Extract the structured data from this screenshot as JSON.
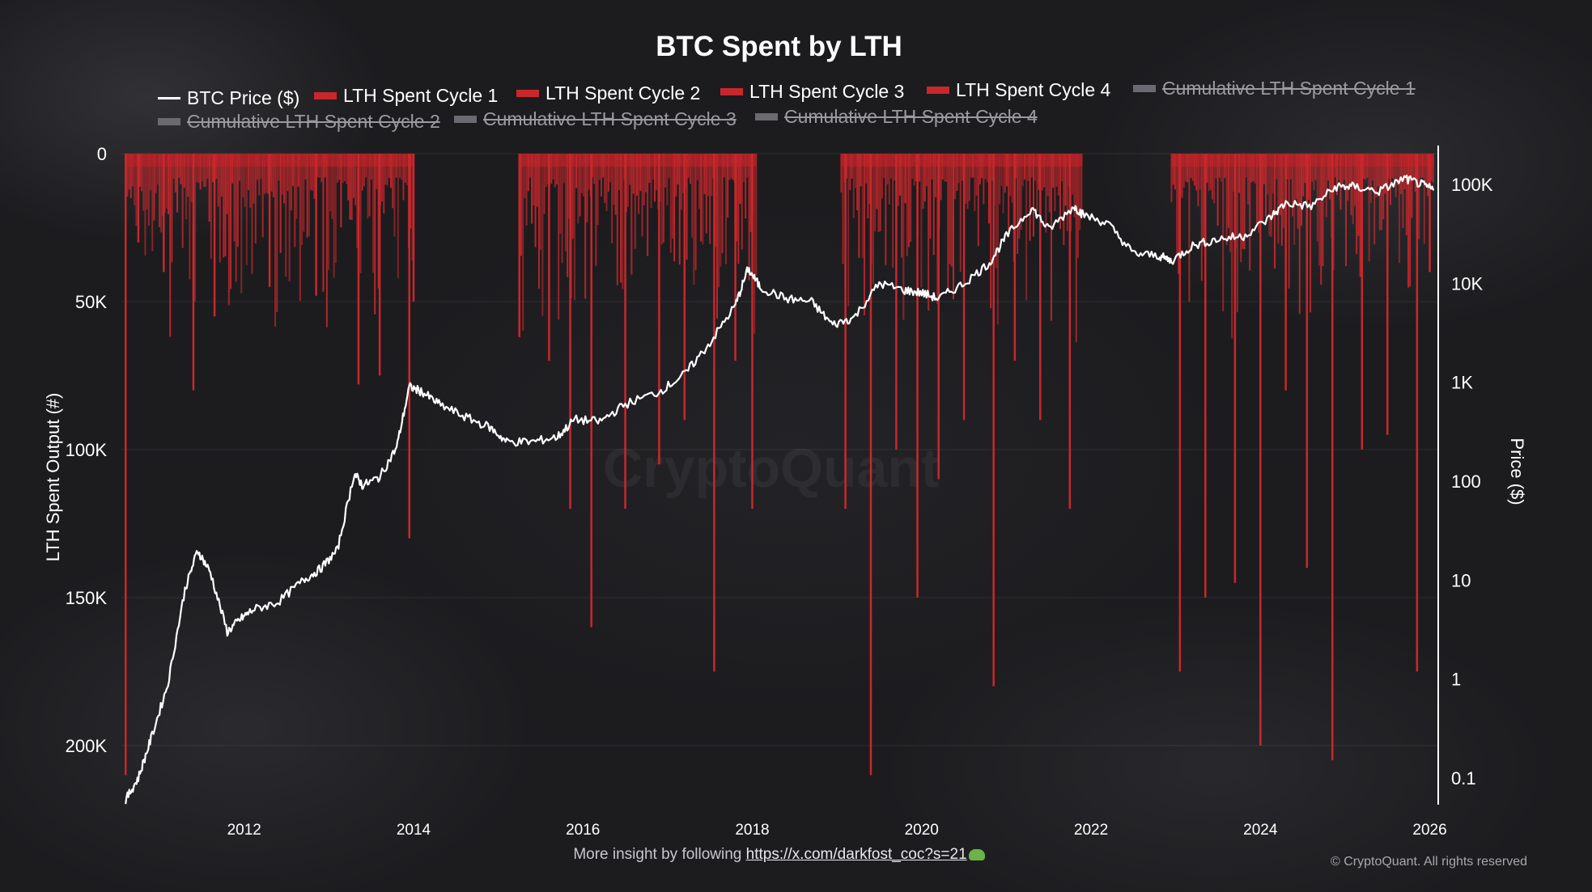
{
  "chart_data": {
    "type": "bar",
    "title": "BTC Spent by LTH",
    "ylabel_left": "LTH Spent Output (#)",
    "ylabel_right": "Price ($)",
    "y_left_ticks": [
      "0",
      "50K",
      "100K",
      "150K",
      "200K"
    ],
    "y_left_values": [
      0,
      50000,
      100000,
      150000,
      200000
    ],
    "y_left_range": [
      0,
      220000
    ],
    "y_left_inverted": true,
    "y_right_ticks": [
      "0.1",
      "1",
      "10",
      "100",
      "1K",
      "10K",
      "100K"
    ],
    "y_right_values": [
      0.1,
      1,
      10,
      100,
      1000,
      10000,
      100000
    ],
    "y_right_scale": "log",
    "x_ticks": [
      "2012",
      "2014",
      "2016",
      "2018",
      "2020",
      "2022",
      "2024",
      "2026"
    ],
    "x_tick_values": [
      2012,
      2014,
      2016,
      2018,
      2020,
      2022,
      2024,
      2026
    ],
    "x_range": [
      2010.55,
      2026.1
    ],
    "legend_placement": "top",
    "grid": true,
    "series": [
      {
        "name": "BTC Price ($)",
        "kind": "line",
        "axis": "right",
        "color": "#ffffff",
        "x": [
          2010.6,
          2010.75,
          2010.9,
          2011.1,
          2011.3,
          2011.45,
          2011.6,
          2011.8,
          2011.95,
          2012.1,
          2012.4,
          2012.7,
          2012.9,
          2013.1,
          2013.3,
          2013.4,
          2013.6,
          2013.8,
          2013.95,
          2014.1,
          2014.3,
          2014.6,
          2014.9,
          2015.1,
          2015.4,
          2015.7,
          2015.9,
          2016.2,
          2016.5,
          2016.9,
          2017.2,
          2017.5,
          2017.8,
          2017.95,
          2018.1,
          2018.4,
          2018.7,
          2018.95,
          2019.2,
          2019.5,
          2019.8,
          2020.0,
          2020.2,
          2020.5,
          2020.8,
          2021.0,
          2021.3,
          2021.5,
          2021.8,
          2021.9,
          2022.2,
          2022.5,
          2022.8,
          2022.95,
          2023.2,
          2023.5,
          2023.8,
          2024.1,
          2024.3,
          2024.6,
          2024.9,
          2025.1,
          2025.4,
          2025.7,
          2025.9,
          2026.05
        ],
        "y": [
          0.06,
          0.1,
          0.25,
          0.9,
          8,
          20,
          12,
          3,
          4,
          5,
          6,
          10,
          13,
          20,
          120,
          90,
          110,
          220,
          900,
          800,
          600,
          450,
          350,
          250,
          250,
          280,
          420,
          400,
          600,
          800,
          1200,
          2500,
          6000,
          14000,
          9000,
          7000,
          6500,
          3800,
          4500,
          10000,
          8500,
          8000,
          7000,
          10000,
          16000,
          30000,
          58000,
          35000,
          60000,
          50000,
          40000,
          20000,
          19000,
          16800,
          24000,
          28000,
          30000,
          45000,
          65000,
          60000,
          95000,
          95000,
          85000,
          115000,
          100000,
          88000
        ]
      },
      {
        "name": "LTH Spent Cycle 1",
        "kind": "bar",
        "axis": "left",
        "color": "#c8282c",
        "x_range": [
          2010.6,
          2014.0
        ],
        "spikes_x": [
          2010.6,
          2010.75,
          2011.05,
          2011.4,
          2011.65,
          2012.3,
          2012.85,
          2013.35,
          2013.6,
          2013.95,
          2014.0
        ],
        "spikes_y": [
          210000,
          30000,
          40000,
          80000,
          55000,
          45000,
          48000,
          78000,
          75000,
          130000,
          50000
        ]
      },
      {
        "name": "LTH Spent Cycle 2",
        "kind": "bar",
        "axis": "left",
        "color": "#c8282c",
        "x_range": [
          2015.25,
          2018.05
        ],
        "spikes_x": [
          2015.25,
          2015.6,
          2015.85,
          2016.1,
          2016.5,
          2016.9,
          2017.2,
          2017.55,
          2017.8,
          2018.0
        ],
        "spikes_y": [
          62000,
          70000,
          120000,
          160000,
          120000,
          105000,
          90000,
          175000,
          70000,
          120000
        ]
      },
      {
        "name": "LTH Spent Cycle 3",
        "kind": "bar",
        "axis": "left",
        "color": "#c8282c",
        "x_range": [
          2019.05,
          2021.9
        ],
        "spikes_x": [
          2019.1,
          2019.4,
          2019.7,
          2019.95,
          2020.2,
          2020.5,
          2020.85,
          2021.1,
          2021.4,
          2021.75
        ],
        "spikes_y": [
          120000,
          210000,
          100000,
          150000,
          110000,
          90000,
          180000,
          70000,
          90000,
          120000
        ]
      },
      {
        "name": "LTH Spent Cycle 4",
        "kind": "bar",
        "axis": "left",
        "color": "#c8282c",
        "x_range": [
          2022.95,
          2026.05
        ],
        "spikes_x": [
          2023.05,
          2023.35,
          2023.7,
          2024.0,
          2024.3,
          2024.55,
          2024.85,
          2025.2,
          2025.5,
          2025.85,
          2026.0
        ],
        "spikes_y": [
          175000,
          150000,
          145000,
          200000,
          80000,
          140000,
          205000,
          100000,
          95000,
          175000,
          40000
        ]
      },
      {
        "name": "Cumulative LTH Spent Cycle 1",
        "kind": "hidden"
      },
      {
        "name": "Cumulative LTH Spent Cycle 2",
        "kind": "hidden"
      },
      {
        "name": "Cumulative LTH Spent Cycle 3",
        "kind": "hidden"
      },
      {
        "name": "Cumulative LTH Spent Cycle 4",
        "kind": "hidden"
      }
    ]
  },
  "legend": [
    {
      "label": "BTC Price ($)",
      "enabled": true,
      "swatch": "line"
    },
    {
      "label": "LTH Spent Cycle 1",
      "enabled": true,
      "swatch": "red"
    },
    {
      "label": "LTH Spent Cycle 2",
      "enabled": true,
      "swatch": "red"
    },
    {
      "label": "LTH Spent Cycle 3",
      "enabled": true,
      "swatch": "red"
    },
    {
      "label": "LTH Spent Cycle 4",
      "enabled": true,
      "swatch": "red"
    },
    {
      "label": "Cumulative LTH Spent Cycle 1",
      "enabled": false,
      "swatch": "gray"
    },
    {
      "label": "Cumulative LTH Spent Cycle 2",
      "enabled": false,
      "swatch": "gray"
    },
    {
      "label": "Cumulative LTH Spent Cycle 3",
      "enabled": false,
      "swatch": "gray"
    },
    {
      "label": "Cumulative LTH Spent Cycle 4",
      "enabled": false,
      "swatch": "gray"
    }
  ],
  "watermark": "CryptoQuant",
  "footer": {
    "prefix": "More insight by following",
    "link": "https://x.com/darkfost_coc?s=21"
  },
  "copyright": "© CryptoQuant. All rights reserved",
  "colors": {
    "bar": "#c8282c",
    "price": "#ffffff",
    "background": "#1c1c1f"
  }
}
